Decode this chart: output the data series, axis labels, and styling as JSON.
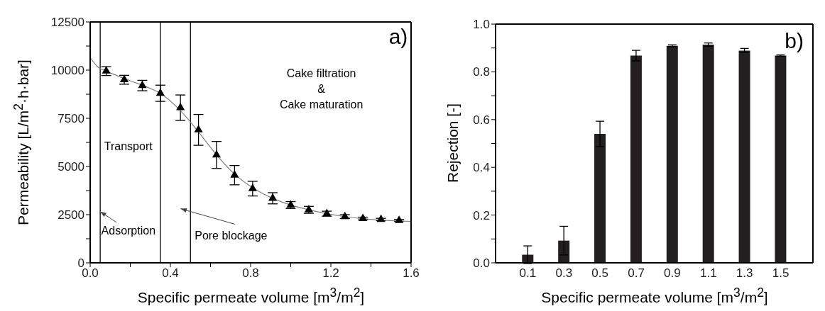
{
  "chart_data": [
    {
      "type": "scatter",
      "xlabel": "Specific permeate volume [m$^{3}$/m$^{2}$]",
      "ylabel": "Permeability [L/m$^{2}$·h·bar]",
      "xlim": [
        0,
        1.6
      ],
      "xticks": [
        {
          "value": 0,
          "label": "0.0"
        },
        {
          "value": 0.2,
          "label": null
        },
        0.4,
        {
          "value": 0.6,
          "label": null
        },
        0.8,
        {
          "value": 1.0,
          "label": null
        },
        1.2,
        {
          "value": 1.4,
          "label": null
        },
        1.6
      ],
      "ylim": [
        0,
        12500
      ],
      "yticks": [
        0,
        {
          "value": 1250,
          "label": null
        },
        2500,
        {
          "value": 3750,
          "label": null
        },
        5000,
        {
          "value": 6250,
          "label": null
        },
        7500,
        {
          "value": 8750,
          "label": null
        },
        10000,
        {
          "value": 11250,
          "label": null
        },
        12500
      ],
      "series": [
        {
          "type": "scatter",
          "marker": "triangle",
          "color": "#000000",
          "x": [
            0.08,
            0.17,
            0.26,
            0.35,
            0.45,
            0.54,
            0.63,
            0.72,
            0.81,
            0.91,
            1.0,
            1.09,
            1.18,
            1.27,
            1.36,
            1.45,
            1.54
          ],
          "values": [
            9950,
            9500,
            9200,
            8800,
            8050,
            6900,
            5600,
            4550,
            3850,
            3350,
            3000,
            2750,
            2550,
            2400,
            2300,
            2250,
            2200
          ],
          "errors": [
            230,
            230,
            270,
            420,
            660,
            800,
            700,
            500,
            380,
            290,
            180,
            180,
            130,
            100,
            70,
            60,
            50
          ]
        },
        {
          "type": "line",
          "marker": "none",
          "color": "#808080",
          "x": [
            0,
            0.04,
            0.08,
            0.2,
            0.3,
            0.35,
            0.45,
            0.54,
            0.63,
            0.72,
            0.81,
            0.91,
            1.0,
            1.09,
            1.18,
            1.27,
            1.36,
            1.45,
            1.6
          ],
          "values": [
            10650,
            10150,
            9950,
            9450,
            9050,
            8800,
            7900,
            6800,
            5600,
            4600,
            3900,
            3350,
            3000,
            2750,
            2550,
            2400,
            2290,
            2220,
            2150
          ]
        }
      ],
      "ref_lines": [
        {
          "axis": "x",
          "value": 0.05,
          "color": "#000000"
        },
        {
          "axis": "x",
          "value": 0.35,
          "color": "#000000"
        },
        {
          "axis": "x",
          "value": 0.5,
          "color": "#000000"
        }
      ],
      "annotations": [
        "Transport",
        "Adsorption",
        "Pore blockage",
        "Cake filtration\n&\nCake maturation",
        "a)"
      ]
    },
    {
      "type": "bar",
      "xlabel": "Specific permeate volume [m$^{3}$/m$^{2}$]",
      "ylabel": "Rejection [-]",
      "categories": [
        "0.1",
        "0.3",
        "0.5",
        "0.7",
        "0.9",
        "1.1",
        "1.3",
        "1.5"
      ],
      "values": [
        0.034,
        0.093,
        0.54,
        0.868,
        0.909,
        0.914,
        0.889,
        0.868
      ],
      "errors": [
        0.037,
        0.06,
        0.053,
        0.022,
        0.004,
        0.007,
        0.009,
        0.003
      ],
      "color": "#231f20",
      "ylim": [
        0,
        1
      ],
      "yticks": [
        {
          "value": 0,
          "label": "0.0"
        },
        {
          "value": 0.1,
          "label": null
        },
        0.2,
        {
          "value": 0.3,
          "label": null
        },
        0.4,
        {
          "value": 0.5,
          "label": null
        },
        0.6,
        {
          "value": 0.7,
          "label": null
        },
        0.8,
        {
          "value": 0.9,
          "label": null
        },
        {
          "value": 1,
          "label": "1.0"
        }
      ],
      "annotations": [
        "b)"
      ]
    }
  ]
}
